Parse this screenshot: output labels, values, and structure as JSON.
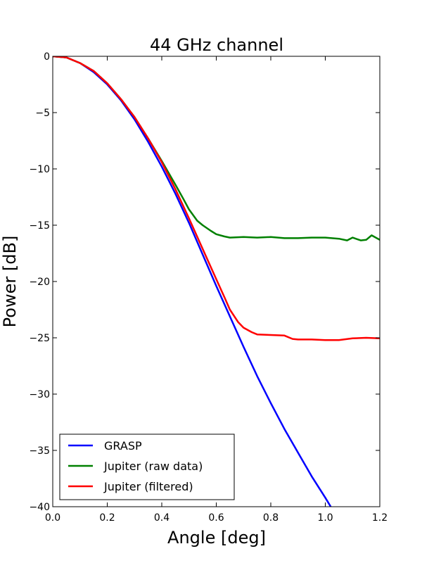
{
  "chart_data": {
    "type": "line",
    "title": "44 GHz channel",
    "xlabel": "Angle [deg]",
    "ylabel": "Power [dB]",
    "xlim": [
      0.0,
      1.2
    ],
    "ylim": [
      -40,
      0
    ],
    "xticks": [
      0.0,
      0.2,
      0.4,
      0.6,
      0.8,
      1.0,
      1.2
    ],
    "xtick_labels": [
      "0.0",
      "0.2",
      "0.4",
      "0.6",
      "0.8",
      "1.0",
      "1.2"
    ],
    "yticks": [
      0,
      -5,
      -10,
      -15,
      -20,
      -25,
      -30,
      -35,
      -40
    ],
    "ytick_labels": [
      "0",
      "−5",
      "−10",
      "−15",
      "−20",
      "−25",
      "−30",
      "−35",
      "−40"
    ],
    "grid": false,
    "legend_position": "lower-left",
    "series": [
      {
        "name": "GRASP",
        "color": "#0000ff",
        "points": [
          [
            0.0,
            0.0
          ],
          [
            0.05,
            -0.1
          ],
          [
            0.1,
            -0.6
          ],
          [
            0.15,
            -1.4
          ],
          [
            0.2,
            -2.5
          ],
          [
            0.25,
            -3.9
          ],
          [
            0.3,
            -5.6
          ],
          [
            0.35,
            -7.6
          ],
          [
            0.4,
            -9.8
          ],
          [
            0.45,
            -12.2
          ],
          [
            0.5,
            -14.8
          ],
          [
            0.55,
            -17.6
          ],
          [
            0.6,
            -20.4
          ],
          [
            0.65,
            -23.1
          ],
          [
            0.7,
            -25.8
          ],
          [
            0.75,
            -28.4
          ],
          [
            0.8,
            -30.8
          ],
          [
            0.85,
            -33.1
          ],
          [
            0.9,
            -35.2
          ],
          [
            0.95,
            -37.3
          ],
          [
            1.0,
            -39.2
          ],
          [
            1.02,
            -40.0
          ]
        ]
      },
      {
        "name": "Jupiter (raw data)",
        "color": "#008000",
        "points": [
          [
            0.0,
            0.0
          ],
          [
            0.05,
            -0.1
          ],
          [
            0.1,
            -0.6
          ],
          [
            0.15,
            -1.3
          ],
          [
            0.2,
            -2.4
          ],
          [
            0.25,
            -3.8
          ],
          [
            0.3,
            -5.4
          ],
          [
            0.35,
            -7.3
          ],
          [
            0.4,
            -9.3
          ],
          [
            0.45,
            -11.4
          ],
          [
            0.48,
            -12.7
          ],
          [
            0.5,
            -13.6
          ],
          [
            0.53,
            -14.6
          ],
          [
            0.55,
            -15.0
          ],
          [
            0.58,
            -15.5
          ],
          [
            0.6,
            -15.8
          ],
          [
            0.63,
            -16.0
          ],
          [
            0.65,
            -16.1
          ],
          [
            0.7,
            -16.05
          ],
          [
            0.75,
            -16.1
          ],
          [
            0.8,
            -16.05
          ],
          [
            0.85,
            -16.15
          ],
          [
            0.9,
            -16.15
          ],
          [
            0.95,
            -16.1
          ],
          [
            1.0,
            -16.1
          ],
          [
            1.05,
            -16.2
          ],
          [
            1.08,
            -16.35
          ],
          [
            1.1,
            -16.1
          ],
          [
            1.13,
            -16.35
          ],
          [
            1.15,
            -16.3
          ],
          [
            1.17,
            -15.9
          ],
          [
            1.2,
            -16.3
          ]
        ]
      },
      {
        "name": "Jupiter (filtered)",
        "color": "#ff0000",
        "points": [
          [
            0.0,
            0.0
          ],
          [
            0.05,
            -0.1
          ],
          [
            0.1,
            -0.6
          ],
          [
            0.15,
            -1.3
          ],
          [
            0.2,
            -2.4
          ],
          [
            0.25,
            -3.8
          ],
          [
            0.3,
            -5.4
          ],
          [
            0.35,
            -7.3
          ],
          [
            0.4,
            -9.4
          ],
          [
            0.45,
            -11.8
          ],
          [
            0.5,
            -14.4
          ],
          [
            0.55,
            -17.1
          ],
          [
            0.6,
            -19.8
          ],
          [
            0.63,
            -21.4
          ],
          [
            0.65,
            -22.5
          ],
          [
            0.68,
            -23.6
          ],
          [
            0.7,
            -24.1
          ],
          [
            0.73,
            -24.5
          ],
          [
            0.75,
            -24.7
          ],
          [
            0.8,
            -24.75
          ],
          [
            0.85,
            -24.8
          ],
          [
            0.88,
            -25.1
          ],
          [
            0.9,
            -25.15
          ],
          [
            0.95,
            -25.15
          ],
          [
            1.0,
            -25.2
          ],
          [
            1.05,
            -25.2
          ],
          [
            1.1,
            -25.05
          ],
          [
            1.15,
            -25.0
          ],
          [
            1.2,
            -25.05
          ]
        ]
      }
    ]
  }
}
